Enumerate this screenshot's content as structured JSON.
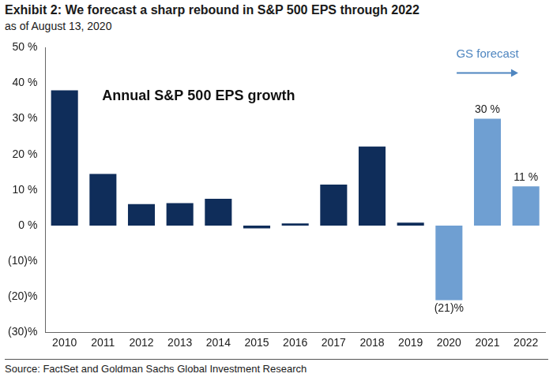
{
  "chart_data": {
    "type": "bar",
    "title": "Exhibit 2: We forecast a sharp rebound in S&P 500 EPS through 2022",
    "subtitle": "as of August 13, 2020",
    "source": "Source: FactSet and Goldman Sachs Global Investment Research",
    "annotations": [
      "Annual S&P 500 EPS growth",
      "GS forecast"
    ],
    "categories": [
      "2010",
      "2011",
      "2012",
      "2013",
      "2014",
      "2015",
      "2016",
      "2017",
      "2018",
      "2019",
      "2020",
      "2021",
      "2022"
    ],
    "values": [
      38,
      14.5,
      6,
      6.3,
      7.5,
      -0.8,
      0.6,
      11.5,
      22.2,
      0.8,
      -21,
      30,
      11
    ],
    "value_labels": [
      null,
      null,
      null,
      null,
      null,
      null,
      null,
      null,
      null,
      null,
      "(21)%",
      "30 %",
      "11 %"
    ],
    "data_labels": true,
    "colors": [
      "#0f2d5a",
      "#0f2d5a",
      "#0f2d5a",
      "#0f2d5a",
      "#0f2d5a",
      "#0f2d5a",
      "#0f2d5a",
      "#0f2d5a",
      "#0f2d5a",
      "#0f2d5a",
      "#6f9fd2",
      "#6f9fd2",
      "#6f9fd2"
    ],
    "ylim": [
      -30,
      50
    ],
    "yticks": [
      {
        "value": -30,
        "label": "(30)%"
      },
      {
        "value": -20,
        "label": "(20)%"
      },
      {
        "value": -10,
        "label": "(10)%"
      },
      {
        "value": 0,
        "label": "0 %"
      },
      {
        "value": 10,
        "label": "10 %"
      },
      {
        "value": 20,
        "label": "20 %"
      },
      {
        "value": 30,
        "label": "30 %"
      },
      {
        "value": 40,
        "label": "40 %"
      },
      {
        "value": 50,
        "label": "50 %"
      }
    ],
    "grid": false
  }
}
